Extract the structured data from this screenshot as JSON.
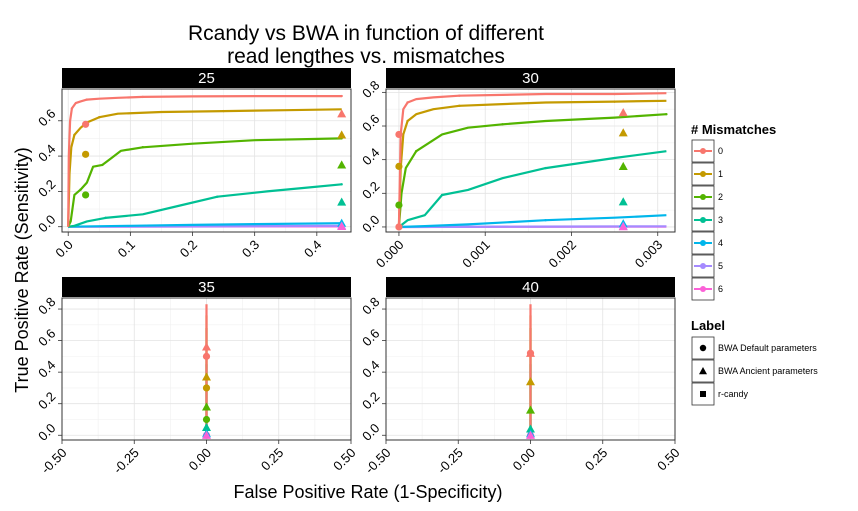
{
  "title_line1": "Rcandy vs BWA  in function of different",
  "title_line2": "read lengthes vs. mismatches",
  "xlabel": "False Positive Rate (1-Specificity)",
  "ylabel": "True Positive Rate (Sensitivity)",
  "legend_mismatch_title": "# Mismatches",
  "legend_label_title": "Label",
  "colors": [
    "#F8766D",
    "#C49A00",
    "#53B400",
    "#00C094",
    "#00B6EB",
    "#A58AFF",
    "#FB61D7"
  ],
  "chart_data": [
    {
      "type": "line",
      "panel": "25",
      "xlim": [
        -0.01,
        0.455
      ],
      "ylim": [
        -0.03,
        0.78
      ],
      "xticks": [
        0.0,
        0.1,
        0.2,
        0.3,
        0.4
      ],
      "xtick_labels": [
        "0.0",
        "0.1",
        "0.2",
        "0.3",
        "0.4"
      ],
      "yticks": [
        0.0,
        0.2,
        0.4,
        0.6
      ],
      "ytick_labels": [
        "0.0",
        "0.2",
        "0.4",
        "0.6"
      ],
      "series": [
        {
          "name": "0",
          "x": [
            0,
            0.001,
            0.003,
            0.006,
            0.012,
            0.02,
            0.03,
            0.05,
            0.08,
            0.12,
            0.2,
            0.3,
            0.44
          ],
          "y": [
            0,
            0.4,
            0.6,
            0.67,
            0.7,
            0.71,
            0.72,
            0.725,
            0.73,
            0.735,
            0.738,
            0.74,
            0.74
          ]
        },
        {
          "name": "1",
          "x": [
            0,
            0.002,
            0.005,
            0.01,
            0.02,
            0.03,
            0.05,
            0.08,
            0.15,
            0.25,
            0.35,
            0.44
          ],
          "y": [
            0,
            0.3,
            0.45,
            0.52,
            0.56,
            0.59,
            0.62,
            0.64,
            0.65,
            0.655,
            0.66,
            0.665
          ]
        },
        {
          "name": "2",
          "x": [
            0,
            0.004,
            0.01,
            0.02,
            0.03,
            0.04,
            0.055,
            0.07,
            0.085,
            0.12,
            0.2,
            0.3,
            0.44
          ],
          "y": [
            0,
            0.03,
            0.18,
            0.21,
            0.25,
            0.34,
            0.35,
            0.39,
            0.43,
            0.45,
            0.47,
            0.49,
            0.5
          ]
        },
        {
          "name": "3",
          "x": [
            0,
            0.01,
            0.03,
            0.06,
            0.12,
            0.18,
            0.24,
            0.32,
            0.38,
            0.44
          ],
          "y": [
            0,
            0.005,
            0.03,
            0.05,
            0.07,
            0.12,
            0.17,
            0.2,
            0.22,
            0.24
          ]
        },
        {
          "name": "4",
          "x": [
            0,
            0.1,
            0.2,
            0.3,
            0.44
          ],
          "y": [
            0,
            0.005,
            0.01,
            0.015,
            0.02
          ]
        },
        {
          "name": "5",
          "x": [
            0,
            0.2,
            0.44
          ],
          "y": [
            0,
            0.002,
            0.005
          ]
        },
        {
          "name": "6",
          "x": [
            0,
            0.2,
            0.44
          ],
          "y": [
            0,
            0.001,
            0.002
          ]
        }
      ],
      "points_bwa_default": [
        {
          "m": 0,
          "x": 0.028,
          "y": 0.58
        },
        {
          "m": 1,
          "x": 0.028,
          "y": 0.41
        },
        {
          "m": 2,
          "x": 0.028,
          "y": 0.18
        }
      ],
      "points_bwa_ancient": [
        {
          "m": 0,
          "x": 0.44,
          "y": 0.64
        },
        {
          "m": 1,
          "x": 0.44,
          "y": 0.52
        },
        {
          "m": 2,
          "x": 0.44,
          "y": 0.35
        },
        {
          "m": 3,
          "x": 0.44,
          "y": 0.14
        },
        {
          "m": 4,
          "x": 0.44,
          "y": 0.02
        },
        {
          "m": 5,
          "x": 0.44,
          "y": 0.005
        },
        {
          "m": 6,
          "x": 0.44,
          "y": 0.002
        }
      ]
    },
    {
      "type": "line",
      "panel": "30",
      "xlim": [
        -0.00015,
        0.0032
      ],
      "ylim": [
        -0.03,
        0.82
      ],
      "xticks": [
        0.0,
        0.001,
        0.002,
        0.003
      ],
      "xtick_labels": [
        "0.000",
        "0.001",
        "0.002",
        "0.003"
      ],
      "yticks": [
        0.0,
        0.2,
        0.4,
        0.6,
        0.8
      ],
      "ytick_labels": [
        "0.0",
        "0.2",
        "0.4",
        "0.6",
        "0.8"
      ],
      "series": [
        {
          "name": "0",
          "x": [
            0,
            2e-05,
            5e-05,
            0.0001,
            0.0002,
            0.0004,
            0.0007,
            0.0012,
            0.0017,
            0.0025,
            0.0031
          ],
          "y": [
            0,
            0.55,
            0.7,
            0.74,
            0.76,
            0.77,
            0.78,
            0.785,
            0.79,
            0.79,
            0.795
          ]
        },
        {
          "name": "1",
          "x": [
            0,
            2e-05,
            5e-05,
            0.0001,
            0.0002,
            0.0004,
            0.0007,
            0.0012,
            0.0017,
            0.0025,
            0.0031
          ],
          "y": [
            0,
            0.35,
            0.55,
            0.63,
            0.67,
            0.7,
            0.72,
            0.73,
            0.74,
            0.745,
            0.75
          ]
        },
        {
          "name": "2",
          "x": [
            0,
            3e-05,
            8e-05,
            0.0002,
            0.0005,
            0.0008,
            0.0012,
            0.0017,
            0.0025,
            0.0031
          ],
          "y": [
            0,
            0.2,
            0.35,
            0.45,
            0.55,
            0.59,
            0.61,
            0.63,
            0.65,
            0.67
          ]
        },
        {
          "name": "3",
          "x": [
            0,
            0.0001,
            0.0003,
            0.0005,
            0.0008,
            0.0012,
            0.0017,
            0.0025,
            0.0031
          ],
          "y": [
            0,
            0.04,
            0.07,
            0.19,
            0.22,
            0.29,
            0.35,
            0.41,
            0.45
          ]
        },
        {
          "name": "4",
          "x": [
            0,
            0.0003,
            0.0008,
            0.0017,
            0.0025,
            0.0031
          ],
          "y": [
            0,
            0.005,
            0.015,
            0.04,
            0.055,
            0.07
          ]
        },
        {
          "name": "5",
          "x": [
            0,
            0.0015,
            0.0031
          ],
          "y": [
            0,
            0.002,
            0.004
          ]
        },
        {
          "name": "6",
          "x": [
            0,
            0.0015,
            0.0031
          ],
          "y": [
            0,
            0.001,
            0.002
          ]
        }
      ],
      "points_bwa_default": [
        {
          "m": 0,
          "x": 0.0,
          "y": 0.55
        },
        {
          "m": 1,
          "x": 0.0,
          "y": 0.36
        },
        {
          "m": 2,
          "x": 0.0,
          "y": 0.13
        },
        {
          "m": 0,
          "x": 0.0,
          "y": 0.0
        }
      ],
      "points_bwa_ancient": [
        {
          "m": 0,
          "x": 0.0026,
          "y": 0.68
        },
        {
          "m": 1,
          "x": 0.0026,
          "y": 0.56
        },
        {
          "m": 2,
          "x": 0.0026,
          "y": 0.36
        },
        {
          "m": 3,
          "x": 0.0026,
          "y": 0.15
        },
        {
          "m": 4,
          "x": 0.0026,
          "y": 0.02
        },
        {
          "m": 5,
          "x": 0.0026,
          "y": 0.005
        },
        {
          "m": 6,
          "x": 0.0026,
          "y": 0.002
        }
      ]
    },
    {
      "type": "line",
      "panel": "35",
      "xlim": [
        -0.5,
        0.5
      ],
      "ylim": [
        -0.03,
        0.87
      ],
      "xticks": [
        -0.5,
        -0.25,
        0.0,
        0.25,
        0.5
      ],
      "xtick_labels": [
        "-0.50",
        "-0.25",
        "0.00",
        "0.25",
        "0.50"
      ],
      "yticks": [
        0.0,
        0.2,
        0.4,
        0.6,
        0.8
      ],
      "ytick_labels": [
        "0.0",
        "0.2",
        "0.4",
        "0.6",
        "0.8"
      ],
      "series": [
        {
          "name": "0",
          "x": [
            0,
            0
          ],
          "y": [
            0,
            0.83
          ]
        },
        {
          "name": "1",
          "x": [
            0,
            0
          ],
          "y": [
            0,
            0.76
          ]
        },
        {
          "name": "2",
          "x": [
            0,
            0
          ],
          "y": [
            0,
            0.68
          ]
        },
        {
          "name": "3",
          "x": [
            0,
            0
          ],
          "y": [
            0,
            0.45
          ]
        },
        {
          "name": "4",
          "x": [
            0,
            0
          ],
          "y": [
            0,
            0.1
          ]
        },
        {
          "name": "5",
          "x": [
            0,
            0
          ],
          "y": [
            0,
            0.02
          ]
        },
        {
          "name": "6",
          "x": [
            0,
            0
          ],
          "y": [
            0,
            0.01
          ]
        }
      ],
      "points_bwa_default": [
        {
          "m": 0,
          "x": 0,
          "y": 0.5
        },
        {
          "m": 1,
          "x": 0,
          "y": 0.3
        },
        {
          "m": 2,
          "x": 0,
          "y": 0.1
        },
        {
          "m": 6,
          "x": 0,
          "y": 0.0
        }
      ],
      "points_bwa_ancient": [
        {
          "m": 0,
          "x": 0,
          "y": 0.56
        },
        {
          "m": 1,
          "x": 0,
          "y": 0.37
        },
        {
          "m": 2,
          "x": 0,
          "y": 0.18
        },
        {
          "m": 3,
          "x": 0,
          "y": 0.05
        },
        {
          "m": 4,
          "x": 0,
          "y": 0.01
        },
        {
          "m": 6,
          "x": 0,
          "y": 0.0
        }
      ]
    },
    {
      "type": "line",
      "panel": "40",
      "xlim": [
        -0.5,
        0.5
      ],
      "ylim": [
        -0.03,
        0.87
      ],
      "xticks": [
        -0.5,
        -0.25,
        0.0,
        0.25,
        0.5
      ],
      "xtick_labels": [
        "-0.50",
        "-0.25",
        "0.00",
        "0.25",
        "0.50"
      ],
      "yticks": [
        0.0,
        0.2,
        0.4,
        0.6,
        0.8
      ],
      "ytick_labels": [
        "0.0",
        "0.2",
        "0.4",
        "0.6",
        "0.8"
      ],
      "series": [
        {
          "name": "0",
          "x": [
            0,
            0
          ],
          "y": [
            0,
            0.83
          ]
        },
        {
          "name": "1",
          "x": [
            0,
            0
          ],
          "y": [
            0,
            0.76
          ]
        },
        {
          "name": "2",
          "x": [
            0,
            0
          ],
          "y": [
            0,
            0.68
          ]
        },
        {
          "name": "3",
          "x": [
            0,
            0
          ],
          "y": [
            0,
            0.45
          ]
        },
        {
          "name": "4",
          "x": [
            0,
            0
          ],
          "y": [
            0,
            0.1
          ]
        },
        {
          "name": "5",
          "x": [
            0,
            0
          ],
          "y": [
            0,
            0.02
          ]
        },
        {
          "name": "6",
          "x": [
            0,
            0
          ],
          "y": [
            0,
            0.01
          ]
        }
      ],
      "points_bwa_default": [
        {
          "m": 0,
          "x": 0,
          "y": 0.52
        },
        {
          "m": 6,
          "x": 0,
          "y": 0.0
        }
      ],
      "points_bwa_ancient": [
        {
          "m": 0,
          "x": 0,
          "y": 0.52
        },
        {
          "m": 1,
          "x": 0,
          "y": 0.34
        },
        {
          "m": 2,
          "x": 0,
          "y": 0.16
        },
        {
          "m": 3,
          "x": 0,
          "y": 0.04
        },
        {
          "m": 4,
          "x": 0,
          "y": 0.01
        },
        {
          "m": 6,
          "x": 0,
          "y": 0.0
        }
      ]
    }
  ],
  "legend_mismatches": [
    "0",
    "1",
    "2",
    "3",
    "4",
    "5",
    "6"
  ],
  "legend_labels": [
    "BWA Default parameters",
    "BWA Ancient parameters",
    "r-candy"
  ]
}
